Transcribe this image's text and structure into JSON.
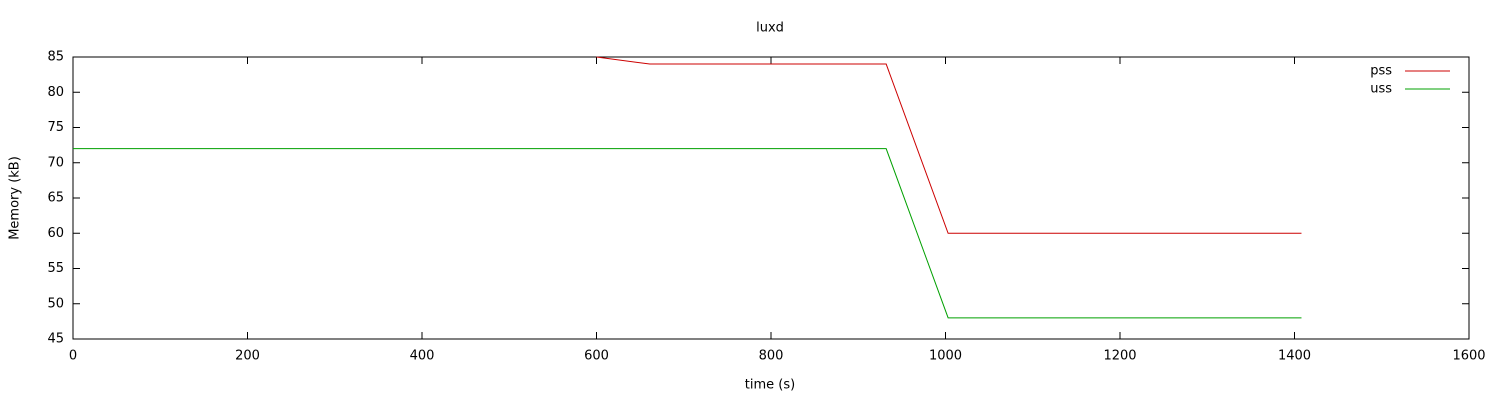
{
  "chart_data": {
    "type": "line",
    "title": "luxd",
    "x_label": "time (s)",
    "y_label": "Memory (kB)",
    "x": [
      0,
      600,
      661,
      932,
      1003,
      1408
    ],
    "series": [
      {
        "name": "pss",
        "color": "#cc0000",
        "values": [
          null,
          85,
          84,
          84,
          60,
          60
        ]
      },
      {
        "name": "uss",
        "color": "#00a000",
        "values": [
          72,
          72,
          72,
          72,
          48,
          48
        ]
      }
    ],
    "xlim": [
      0,
      1600
    ],
    "xticks": [
      0,
      200,
      400,
      600,
      800,
      1000,
      1200,
      1400,
      1600
    ],
    "ylim": [
      45,
      85
    ],
    "yticks": [
      45,
      50,
      55,
      60,
      65,
      70,
      75,
      80,
      85
    ],
    "grid": false,
    "legend": "top-right"
  }
}
